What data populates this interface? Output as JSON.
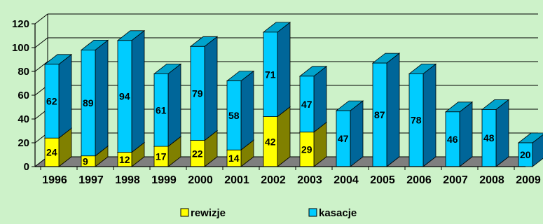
{
  "chart_data": {
    "type": "bar",
    "stacked": true,
    "three_d": true,
    "categories": [
      "1996",
      "1997",
      "1998",
      "1999",
      "2000",
      "2001",
      "2002",
      "2003",
      "2004",
      "2005",
      "2006",
      "2007",
      "2008",
      "2009"
    ],
    "series": [
      {
        "name": "rewizje",
        "values": [
          24,
          9,
          12,
          17,
          22,
          14,
          42,
          29,
          0,
          0,
          0,
          0,
          0,
          0
        ],
        "color": "#ffff00",
        "label_shown": [
          true,
          true,
          true,
          true,
          true,
          true,
          true,
          true,
          false,
          false,
          false,
          false,
          false,
          false
        ]
      },
      {
        "name": "kasacje",
        "values": [
          62,
          89,
          94,
          61,
          79,
          58,
          71,
          47,
          47,
          87,
          78,
          46,
          48,
          20
        ],
        "color": "#00ccff",
        "label_shown": [
          true,
          true,
          true,
          true,
          true,
          true,
          true,
          true,
          true,
          true,
          true,
          true,
          true,
          true
        ]
      }
    ],
    "y_ticks": [
      0,
      20,
      40,
      60,
      80,
      100,
      120
    ],
    "ylim": [
      0,
      120
    ],
    "grid": true,
    "legend": {
      "position": "bottom",
      "entries": [
        "rewizje",
        "kasacje"
      ]
    },
    "title": "",
    "xlabel": "",
    "ylabel": ""
  },
  "colors": {
    "background": "#cdf2c9",
    "floor": "#7f7f7f",
    "rewizje_front": "#ffff00",
    "rewizje_top": "#cccc00",
    "rewizje_side": "#808000",
    "kasacje_front": "#00ccff",
    "kasacje_top": "#00a3cc",
    "kasacje_side": "#006699"
  }
}
